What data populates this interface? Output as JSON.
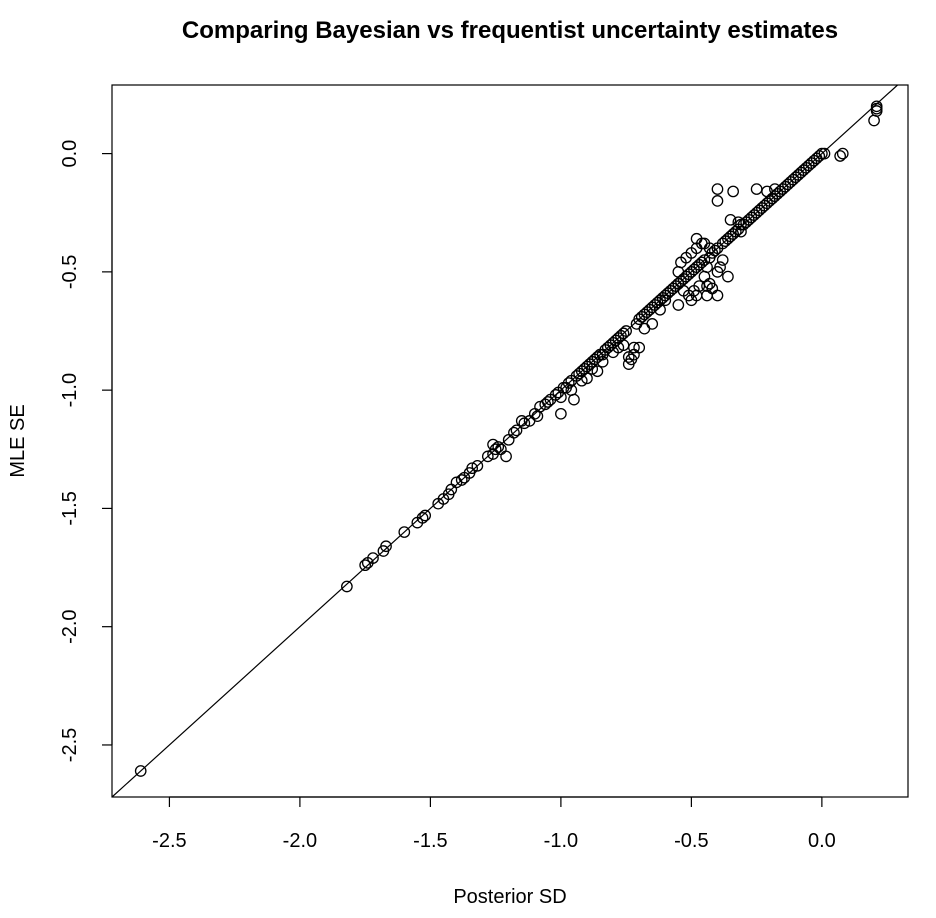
{
  "chart_data": {
    "type": "scatter",
    "title": "Comparing Bayesian vs frequentist uncertainty estimates",
    "xlabel": "Posterior SD",
    "ylabel": "MLE SE",
    "xlim": [
      -2.72,
      0.33
    ],
    "ylim": [
      -2.72,
      0.29
    ],
    "xticks": [
      -2.5,
      -2.0,
      -1.5,
      -1.0,
      -0.5,
      0.0
    ],
    "xtick_labels": [
      "-2.5",
      "-2.0",
      "-1.5",
      "-1.0",
      "-0.5",
      "0.0"
    ],
    "yticks": [
      -2.5,
      -2.0,
      -1.5,
      -1.0,
      -0.5,
      0.0
    ],
    "ytick_labels": [
      "-2.5",
      "-2.0",
      "-1.5",
      "-1.0",
      "-0.5",
      "0.0"
    ],
    "reference_line": {
      "intercept": 0,
      "slope": 1
    },
    "grid": false,
    "legend": "none",
    "marker": "open-circle",
    "points": [
      [
        -2.61,
        -2.61
      ],
      [
        -1.82,
        -1.83
      ],
      [
        -1.75,
        -1.74
      ],
      [
        -1.74,
        -1.73
      ],
      [
        -1.72,
        -1.71
      ],
      [
        -1.68,
        -1.68
      ],
      [
        -1.67,
        -1.66
      ],
      [
        -1.6,
        -1.6
      ],
      [
        -1.55,
        -1.56
      ],
      [
        -1.53,
        -1.54
      ],
      [
        -1.52,
        -1.53
      ],
      [
        -1.47,
        -1.48
      ],
      [
        -1.45,
        -1.46
      ],
      [
        -1.43,
        -1.44
      ],
      [
        -1.42,
        -1.42
      ],
      [
        -1.4,
        -1.39
      ],
      [
        -1.38,
        -1.38
      ],
      [
        -1.37,
        -1.37
      ],
      [
        -1.35,
        -1.35
      ],
      [
        -1.34,
        -1.33
      ],
      [
        -1.32,
        -1.32
      ],
      [
        -1.28,
        -1.28
      ],
      [
        -1.26,
        -1.27
      ],
      [
        -1.26,
        -1.23
      ],
      [
        -1.25,
        -1.25
      ],
      [
        -1.24,
        -1.24
      ],
      [
        -1.23,
        -1.25
      ],
      [
        -1.21,
        -1.28
      ],
      [
        -1.2,
        -1.21
      ],
      [
        -1.18,
        -1.18
      ],
      [
        -1.17,
        -1.17
      ],
      [
        -1.15,
        -1.13
      ],
      [
        -1.14,
        -1.14
      ],
      [
        -1.12,
        -1.13
      ],
      [
        -1.1,
        -1.1
      ],
      [
        -1.09,
        -1.11
      ],
      [
        -1.08,
        -1.07
      ],
      [
        -1.06,
        -1.06
      ],
      [
        -1.05,
        -1.05
      ],
      [
        -1.04,
        -1.04
      ],
      [
        -1.02,
        -1.02
      ],
      [
        -1.01,
        -1.01
      ],
      [
        -1.0,
        -1.1
      ],
      [
        -0.99,
        -0.99
      ],
      [
        -0.98,
        -0.99
      ],
      [
        -0.97,
        -0.97
      ],
      [
        -0.96,
        -0.96
      ],
      [
        -0.95,
        -1.04
      ],
      [
        -0.94,
        -0.94
      ],
      [
        -0.93,
        -0.93
      ],
      [
        -0.92,
        -0.92
      ],
      [
        -0.91,
        -0.91
      ],
      [
        -0.9,
        -0.9
      ],
      [
        -0.89,
        -0.89
      ],
      [
        -0.88,
        -0.88
      ],
      [
        -0.87,
        -0.87
      ],
      [
        -0.86,
        -0.86
      ],
      [
        -0.85,
        -0.85
      ],
      [
        -0.84,
        -0.85
      ],
      [
        -0.83,
        -0.83
      ],
      [
        -0.82,
        -0.82
      ],
      [
        -0.81,
        -0.81
      ],
      [
        -0.8,
        -0.8
      ],
      [
        -0.79,
        -0.79
      ],
      [
        -0.78,
        -0.78
      ],
      [
        -0.77,
        -0.77
      ],
      [
        -0.76,
        -0.76
      ],
      [
        -0.75,
        -0.75
      ],
      [
        -0.74,
        -0.86
      ],
      [
        -0.73,
        -0.87
      ],
      [
        -0.72,
        -0.85
      ],
      [
        -0.72,
        -0.82
      ],
      [
        -0.74,
        -0.89
      ],
      [
        -0.71,
        -0.72
      ],
      [
        -0.7,
        -0.7
      ],
      [
        -0.69,
        -0.69
      ],
      [
        -0.68,
        -0.68
      ],
      [
        -0.67,
        -0.67
      ],
      [
        -0.66,
        -0.66
      ],
      [
        -0.65,
        -0.65
      ],
      [
        -0.64,
        -0.64
      ],
      [
        -0.63,
        -0.63
      ],
      [
        -0.62,
        -0.62
      ],
      [
        -0.61,
        -0.61
      ],
      [
        -0.6,
        -0.6
      ],
      [
        -0.59,
        -0.59
      ],
      [
        -0.58,
        -0.58
      ],
      [
        -0.57,
        -0.57
      ],
      [
        -0.56,
        -0.56
      ],
      [
        -0.55,
        -0.55
      ],
      [
        -0.54,
        -0.54
      ],
      [
        -0.53,
        -0.53
      ],
      [
        -0.52,
        -0.52
      ],
      [
        -0.51,
        -0.51
      ],
      [
        -0.5,
        -0.5
      ],
      [
        -0.49,
        -0.49
      ],
      [
        -0.48,
        -0.48
      ],
      [
        -0.47,
        -0.47
      ],
      [
        -0.46,
        -0.46
      ],
      [
        -0.45,
        -0.45
      ],
      [
        -0.55,
        -0.5
      ],
      [
        -0.55,
        -0.55
      ],
      [
        -0.54,
        -0.46
      ],
      [
        -0.53,
        -0.58
      ],
      [
        -0.52,
        -0.44
      ],
      [
        -0.51,
        -0.6
      ],
      [
        -0.5,
        -0.42
      ],
      [
        -0.49,
        -0.58
      ],
      [
        -0.48,
        -0.4
      ],
      [
        -0.47,
        -0.56
      ],
      [
        -0.46,
        -0.38
      ],
      [
        -0.45,
        -0.52
      ],
      [
        -0.44,
        -0.48
      ],
      [
        -0.43,
        -0.44
      ],
      [
        -0.42,
        -0.42
      ],
      [
        -0.55,
        -0.64
      ],
      [
        -0.5,
        -0.62
      ],
      [
        -0.48,
        -0.6
      ],
      [
        -0.44,
        -0.56
      ],
      [
        -0.44,
        -0.6
      ],
      [
        -0.43,
        -0.55
      ],
      [
        -0.42,
        -0.57
      ],
      [
        -0.48,
        -0.36
      ],
      [
        -0.45,
        -0.38
      ],
      [
        -0.43,
        -0.4
      ],
      [
        -0.41,
        -0.41
      ],
      [
        -0.4,
        -0.4
      ],
      [
        -0.39,
        -0.48
      ],
      [
        -0.38,
        -0.38
      ],
      [
        -0.37,
        -0.37
      ],
      [
        -0.36,
        -0.36
      ],
      [
        -0.35,
        -0.35
      ],
      [
        -0.34,
        -0.34
      ],
      [
        -0.33,
        -0.33
      ],
      [
        -0.32,
        -0.32
      ],
      [
        -0.31,
        -0.3
      ],
      [
        -0.3,
        -0.3
      ],
      [
        -0.29,
        -0.29
      ],
      [
        -0.28,
        -0.28
      ],
      [
        -0.27,
        -0.27
      ],
      [
        -0.26,
        -0.26
      ],
      [
        -0.25,
        -0.25
      ],
      [
        -0.24,
        -0.24
      ],
      [
        -0.23,
        -0.23
      ],
      [
        -0.22,
        -0.22
      ],
      [
        -0.21,
        -0.21
      ],
      [
        -0.2,
        -0.2
      ],
      [
        -0.19,
        -0.19
      ],
      [
        -0.18,
        -0.18
      ],
      [
        -0.17,
        -0.17
      ],
      [
        -0.16,
        -0.16
      ],
      [
        -0.15,
        -0.15
      ],
      [
        -0.14,
        -0.14
      ],
      [
        -0.13,
        -0.13
      ],
      [
        -0.12,
        -0.12
      ],
      [
        -0.11,
        -0.11
      ],
      [
        -0.1,
        -0.1
      ],
      [
        -0.09,
        -0.09
      ],
      [
        -0.08,
        -0.08
      ],
      [
        -0.07,
        -0.07
      ],
      [
        -0.06,
        -0.06
      ],
      [
        -0.05,
        -0.05
      ],
      [
        -0.04,
        -0.04
      ],
      [
        -0.03,
        -0.03
      ],
      [
        -0.02,
        -0.02
      ],
      [
        -0.01,
        -0.01
      ],
      [
        0.0,
        0.0
      ],
      [
        0.01,
        0.0
      ],
      [
        0.07,
        -0.01
      ],
      [
        0.08,
        0.0
      ],
      [
        -0.4,
        -0.15
      ],
      [
        -0.4,
        -0.2
      ],
      [
        -0.34,
        -0.16
      ],
      [
        -0.25,
        -0.15
      ],
      [
        -0.21,
        -0.16
      ],
      [
        -0.19,
        -0.19
      ],
      [
        -0.18,
        -0.15
      ],
      [
        -0.35,
        -0.28
      ],
      [
        -0.32,
        -0.29
      ],
      [
        -0.31,
        -0.33
      ],
      [
        -0.38,
        -0.45
      ],
      [
        -0.4,
        -0.6
      ],
      [
        -0.36,
        -0.52
      ],
      [
        -0.4,
        -0.5
      ],
      [
        -0.6,
        -0.62
      ],
      [
        -0.62,
        -0.66
      ],
      [
        -0.65,
        -0.72
      ],
      [
        -0.68,
        -0.74
      ],
      [
        -0.7,
        -0.82
      ],
      [
        -0.76,
        -0.81
      ],
      [
        -0.8,
        -0.84
      ],
      [
        -0.86,
        -0.92
      ],
      [
        -0.9,
        -0.95
      ],
      [
        -0.96,
        -1.0
      ],
      [
        -1.0,
        -1.03
      ],
      [
        -0.92,
        -0.96
      ],
      [
        -0.88,
        -0.91
      ],
      [
        -0.84,
        -0.88
      ],
      [
        -0.78,
        -0.82
      ],
      [
        0.21,
        0.19
      ],
      [
        0.21,
        0.18
      ],
      [
        0.2,
        0.14
      ],
      [
        0.21,
        0.2
      ]
    ]
  }
}
